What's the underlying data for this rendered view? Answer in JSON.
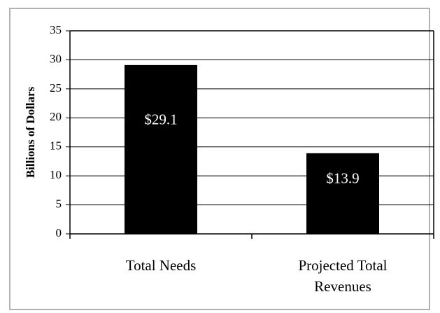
{
  "chart_data": {
    "type": "bar",
    "y_axis_label": "Billions of Dollars",
    "categories": [
      "Total Needs",
      "Projected Total Revenues"
    ],
    "values": [
      29.1,
      13.9
    ],
    "value_labels": [
      "$29.1",
      "$13.9"
    ],
    "color": "#000000",
    "ylim": [
      0,
      35
    ],
    "yticks": [
      0,
      5,
      10,
      15,
      20,
      25,
      30,
      35
    ],
    "grid": true
  }
}
